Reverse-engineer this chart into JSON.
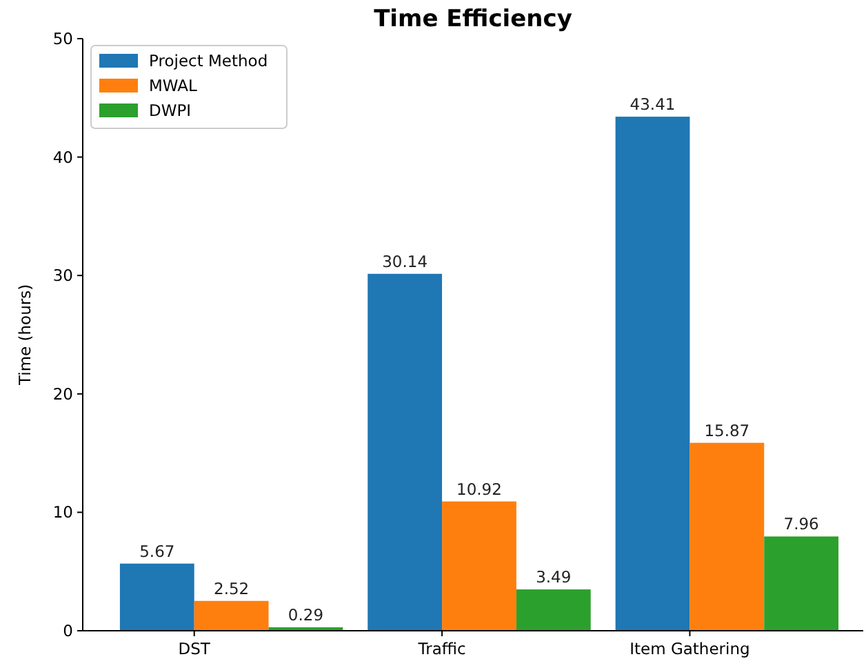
{
  "chart_data": {
    "type": "bar",
    "title": "Time Efficiency",
    "ylabel": "Time (hours)",
    "categories": [
      "DST",
      "Traffic",
      "Item Gathering"
    ],
    "series": [
      {
        "name": "Project Method",
        "color": "#1f77b4",
        "values": [
          5.67,
          30.14,
          43.41
        ]
      },
      {
        "name": "MWAL",
        "color": "#ff7f0e",
        "values": [
          2.52,
          10.92,
          15.87
        ]
      },
      {
        "name": "DWPI",
        "color": "#2ca02c",
        "values": [
          0.29,
          3.49,
          7.96
        ]
      }
    ],
    "ylim": [
      0,
      50
    ],
    "yticks": [
      0,
      10,
      20,
      30,
      40,
      50
    ],
    "data_labels": true,
    "legend": "top left",
    "grid": false
  }
}
